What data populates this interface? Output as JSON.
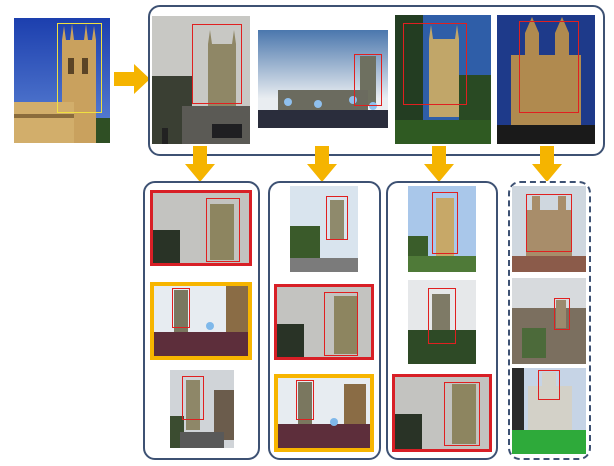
{
  "colors": {
    "panel_border": "#3d5173",
    "arrow": "#f5b400",
    "match_red": "#d81f26",
    "match_gold": "#f7b500",
    "bbox_red": "#e02020",
    "bbox_yellow": "#f0e040"
  },
  "query": {
    "content": "tower-photo"
  },
  "retrieved": [
    {
      "content": "tower-overcast"
    },
    {
      "content": "crowd-balloons"
    },
    {
      "content": "tower-trees-bluesky"
    },
    {
      "content": "college-facade-night"
    }
  ],
  "columns": [
    {
      "border": "solid",
      "items": [
        {
          "frame": "red",
          "content": "tower-overcast"
        },
        {
          "frame": "gold",
          "content": "crowd-balloons"
        },
        {
          "frame": "none",
          "content": "street-tower"
        }
      ]
    },
    {
      "border": "solid",
      "items": [
        {
          "frame": "none",
          "content": "tower-trees-road"
        },
        {
          "frame": "red",
          "content": "tower-overcast"
        },
        {
          "frame": "gold",
          "content": "crowd-balloons"
        }
      ]
    },
    {
      "border": "solid",
      "items": [
        {
          "frame": "none",
          "content": "tower-cloudy-garden"
        },
        {
          "frame": "none",
          "content": "tower-garden-grey"
        },
        {
          "frame": "red",
          "content": "tower-overcast"
        }
      ]
    },
    {
      "border": "dashed",
      "items": [
        {
          "frame": "none",
          "content": "college-aerial"
        },
        {
          "frame": "none",
          "content": "rooftops-aerial"
        },
        {
          "frame": "none",
          "content": "quad-lawn"
        }
      ]
    }
  ]
}
